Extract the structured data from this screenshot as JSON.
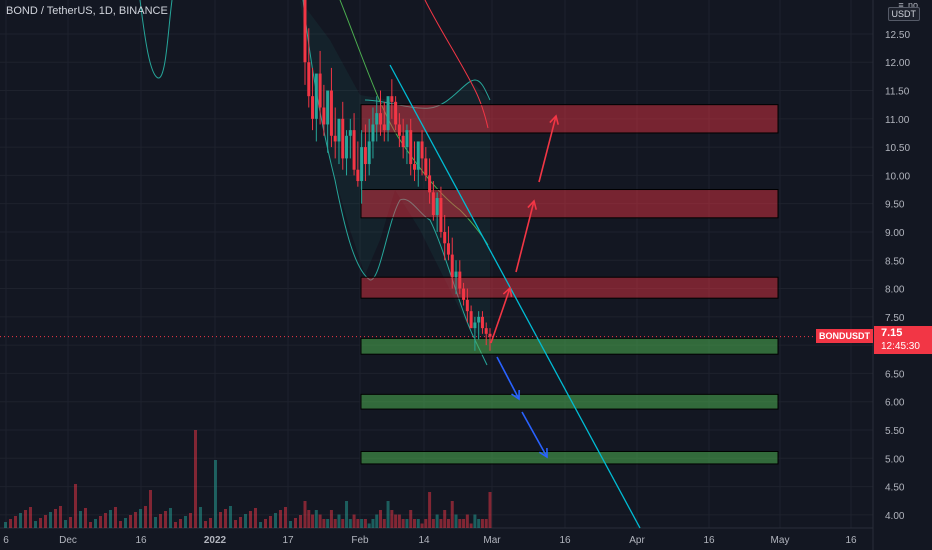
{
  "header": {
    "title": "BOND / TetherUS, 1D, BINANCE",
    "currency_top": "≡  no",
    "currency": "USDT"
  },
  "current": {
    "symbol": "BONDUSDT",
    "price": "7.15",
    "countdown": "12:45:30"
  },
  "colors": {
    "background": "#131722",
    "up": "#26a69a",
    "down": "#f23645",
    "bb": "#26a69a",
    "ma_red": "#f23645",
    "ma_green": "#4caf50",
    "trendline": "#00bcd4",
    "arrow_up": "#f23645",
    "arrow_down": "#2962ff",
    "resistance_zone": "#f23645",
    "support_zone": "#4caf50"
  },
  "chart_data": {
    "type": "candlestick",
    "ylim": [
      3.75,
      13.1
    ],
    "y_ticks": [
      "12.50",
      "12.00",
      "11.50",
      "11.00",
      "10.50",
      "10.00",
      "9.50",
      "9.00",
      "8.50",
      "8.00",
      "7.50",
      "7.00",
      "6.50",
      "6.00",
      "5.50",
      "5.00",
      "4.50",
      "4.00"
    ],
    "x_ticks": [
      "6",
      "Dec",
      "16",
      "2022",
      "17",
      "Feb",
      "14",
      "Mar",
      "16",
      "Apr",
      "16",
      "May",
      "16"
    ],
    "candles_o": [
      13.5,
      12.0,
      11.4,
      11.0,
      11.8,
      11.2,
      10.9,
      11.5,
      10.7,
      10.6,
      11.0,
      10.3,
      10.7,
      10.8,
      10.1,
      9.9,
      10.5,
      10.2,
      10.6,
      10.9,
      11.1,
      10.9,
      10.8,
      11.4,
      11.3,
      10.9,
      10.7,
      10.5,
      10.8,
      10.2,
      10.1,
      10.6,
      10.3,
      10.0,
      9.7,
      9.3,
      9.6,
      9.0,
      8.8,
      8.6,
      8.2,
      8.3,
      8.0,
      7.8,
      7.6,
      7.3,
      7.4,
      7.5,
      7.3,
      7.2
    ],
    "candles_h": [
      13.8,
      12.6,
      11.9,
      11.5,
      12.2,
      11.6,
      11.2,
      11.9,
      11.2,
      11.0,
      11.3,
      10.8,
      11.0,
      11.1,
      10.6,
      10.8,
      10.9,
      11.0,
      11.2,
      11.4,
      11.5,
      11.3,
      11.3,
      11.7,
      11.4,
      11.1,
      11.0,
      10.9,
      11.0,
      10.6,
      10.5,
      10.8,
      10.5,
      10.3,
      9.9,
      9.7,
      9.8,
      9.3,
      9.1,
      8.9,
      8.5,
      8.5,
      8.1,
      8.0,
      7.7,
      7.5,
      7.6,
      7.6,
      7.4,
      7.3
    ],
    "candles_l": [
      11.6,
      11.2,
      10.8,
      10.6,
      10.9,
      10.7,
      10.4,
      10.5,
      10.3,
      10.2,
      10.1,
      10.0,
      10.3,
      10.0,
      9.8,
      9.5,
      9.9,
      10.0,
      10.3,
      10.6,
      10.7,
      10.6,
      10.6,
      11.0,
      10.8,
      10.5,
      10.3,
      10.2,
      10.0,
      9.9,
      9.8,
      10.0,
      9.9,
      9.5,
      9.2,
      9.0,
      8.9,
      8.5,
      8.5,
      8.0,
      7.9,
      7.9,
      7.7,
      7.4,
      7.3,
      6.9,
      7.1,
      7.2,
      7.0,
      6.9
    ],
    "candles_c": [
      12.0,
      11.4,
      11.0,
      11.8,
      11.2,
      10.9,
      11.5,
      10.7,
      10.6,
      11.0,
      10.3,
      10.7,
      10.8,
      10.1,
      9.9,
      10.5,
      10.2,
      10.6,
      10.9,
      11.1,
      10.9,
      10.8,
      11.4,
      11.3,
      10.9,
      10.7,
      10.5,
      10.8,
      10.2,
      10.1,
      10.6,
      10.3,
      10.0,
      9.7,
      9.3,
      9.6,
      9.0,
      8.8,
      8.6,
      8.2,
      8.3,
      8.0,
      7.8,
      7.6,
      7.3,
      7.4,
      7.5,
      7.3,
      7.2,
      7.15
    ],
    "volume": [
      3,
      2,
      1.5,
      2,
      1.5,
      1,
      1,
      2,
      1,
      1.5,
      1,
      3,
      1,
      1.5,
      1,
      1,
      1,
      0.5,
      1,
      1.5,
      2,
      1,
      3,
      2,
      1.5,
      1.5,
      1,
      1,
      2,
      1,
      1,
      0.5,
      1,
      4,
      1,
      1.5,
      1,
      2,
      1,
      3,
      1.5,
      1,
      1,
      1.5,
      0.5,
      1.5,
      1,
      1,
      1,
      4
    ],
    "zones_resistance": [
      [
        10.75,
        11.25
      ],
      [
        9.25,
        9.75
      ],
      [
        7.83,
        8.2
      ]
    ],
    "zones_support": [
      [
        6.84,
        7.12
      ],
      [
        5.87,
        6.13
      ],
      [
        4.9,
        5.12
      ]
    ],
    "last_price": 7.15
  }
}
